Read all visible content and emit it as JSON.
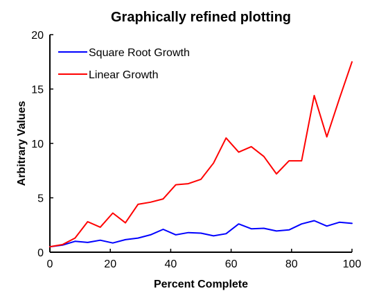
{
  "chart_data": {
    "type": "line",
    "title": "Graphically refined plotting",
    "xlabel": "Percent Complete",
    "ylabel": "Arbitrary Values",
    "xlim": [
      0,
      100
    ],
    "ylim": [
      0,
      20
    ],
    "xticks": [
      0,
      20,
      40,
      60,
      80,
      100
    ],
    "yticks": [
      0,
      5,
      10,
      15,
      20
    ],
    "grid": false,
    "legend_position": "top-left",
    "series": [
      {
        "name": "Square Root Growth",
        "color": "#0000ff",
        "x": [
          0,
          4.17,
          8.33,
          12.5,
          16.67,
          20.83,
          25,
          29.17,
          33.33,
          37.5,
          41.67,
          45.83,
          50,
          54.17,
          58.33,
          62.5,
          66.67,
          70.83,
          75,
          79.17,
          83.33,
          87.5,
          91.67,
          95.83,
          100
        ],
        "y": [
          0.5,
          0.65,
          1.0,
          0.9,
          1.1,
          0.85,
          1.15,
          1.3,
          1.6,
          2.1,
          1.6,
          1.8,
          1.75,
          1.5,
          1.7,
          2.6,
          2.15,
          2.2,
          1.95,
          2.05,
          2.6,
          2.9,
          2.4,
          2.75,
          2.65
        ]
      },
      {
        "name": "Linear Growth",
        "color": "#ff0000",
        "x": [
          0,
          4.17,
          8.33,
          12.5,
          16.67,
          20.83,
          25,
          29.17,
          33.33,
          37.5,
          41.67,
          45.83,
          50,
          54.17,
          58.33,
          62.5,
          66.67,
          70.83,
          75,
          79.17,
          83.33,
          87.5,
          91.67,
          95.83,
          100
        ],
        "y": [
          0.5,
          0.7,
          1.3,
          2.8,
          2.3,
          3.6,
          2.7,
          4.4,
          4.6,
          4.9,
          6.2,
          6.3,
          6.7,
          8.2,
          10.5,
          9.2,
          9.7,
          8.8,
          7.2,
          8.4,
          8.4,
          14.4,
          10.6,
          14.1,
          17.5
        ]
      }
    ]
  }
}
